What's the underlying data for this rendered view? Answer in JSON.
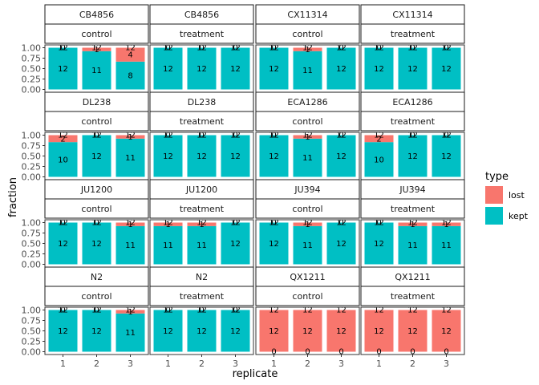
{
  "colors": {
    "lost": "#F8766D",
    "kept": "#00BFC4"
  },
  "chart_data": {
    "type": "bar",
    "stacked": true,
    "facet_rows": 4,
    "facet_cols": 4,
    "xlabel": "replicate",
    "ylabel": "fraction",
    "ylim": [
      0,
      1
    ],
    "y_ticks": [
      "0.00",
      "0.25",
      "0.50",
      "0.75",
      "1.00"
    ],
    "categories": [
      "1",
      "2",
      "3"
    ],
    "legend": {
      "title": "type",
      "position": "right",
      "entries": [
        {
          "name": "lost",
          "color_key": "lost"
        },
        {
          "name": "kept",
          "color_key": "kept"
        }
      ]
    },
    "panels": [
      {
        "strain": "CB4856",
        "condition": "control",
        "lost": [
          0,
          1,
          4
        ],
        "kept": [
          12,
          11,
          8
        ],
        "top": [
          "12",
          "12",
          "12"
        ]
      },
      {
        "strain": "CB4856",
        "condition": "treatment",
        "lost": [
          0,
          0,
          0
        ],
        "kept": [
          12,
          12,
          12
        ],
        "top": [
          "12",
          "12",
          "12"
        ]
      },
      {
        "strain": "CX11314",
        "condition": "control",
        "lost": [
          0,
          1,
          0
        ],
        "kept": [
          12,
          11,
          12
        ],
        "top": [
          "12",
          "12",
          "12"
        ]
      },
      {
        "strain": "CX11314",
        "condition": "treatment",
        "lost": [
          0,
          0,
          0
        ],
        "kept": [
          12,
          12,
          12
        ],
        "top": [
          "12",
          "12",
          "12"
        ]
      },
      {
        "strain": "DL238",
        "condition": "control",
        "lost": [
          2,
          0,
          1
        ],
        "kept": [
          10,
          12,
          11
        ],
        "top": [
          "12",
          "12",
          "12"
        ]
      },
      {
        "strain": "DL238",
        "condition": "treatment",
        "lost": [
          0,
          0,
          0
        ],
        "kept": [
          12,
          12,
          12
        ],
        "top": [
          "12",
          "12",
          "12"
        ]
      },
      {
        "strain": "ECA1286",
        "condition": "control",
        "lost": [
          0,
          1,
          0
        ],
        "kept": [
          12,
          11,
          12
        ],
        "top": [
          "12",
          "12",
          "12"
        ]
      },
      {
        "strain": "ECA1286",
        "condition": "treatment",
        "lost": [
          2,
          0,
          0
        ],
        "kept": [
          10,
          12,
          12
        ],
        "top": [
          "12",
          "12",
          "12"
        ]
      },
      {
        "strain": "JU1200",
        "condition": "control",
        "lost": [
          0,
          0,
          1
        ],
        "kept": [
          12,
          12,
          11
        ],
        "top": [
          "12",
          "12",
          "12"
        ]
      },
      {
        "strain": "JU1200",
        "condition": "treatment",
        "lost": [
          1,
          1,
          0
        ],
        "kept": [
          11,
          11,
          12
        ],
        "top": [
          "12",
          "12",
          "12"
        ]
      },
      {
        "strain": "JU394",
        "condition": "control",
        "lost": [
          0,
          1,
          0
        ],
        "kept": [
          12,
          11,
          12
        ],
        "top": [
          "12",
          "12",
          "12"
        ]
      },
      {
        "strain": "JU394",
        "condition": "treatment",
        "lost": [
          0,
          1,
          1
        ],
        "kept": [
          12,
          11,
          11
        ],
        "top": [
          "12",
          "12",
          "12"
        ]
      },
      {
        "strain": "N2",
        "condition": "control",
        "lost": [
          0,
          0,
          1
        ],
        "kept": [
          12,
          12,
          11
        ],
        "top": [
          "12",
          "12",
          "12"
        ]
      },
      {
        "strain": "N2",
        "condition": "treatment",
        "lost": [
          0,
          0,
          0
        ],
        "kept": [
          12,
          12,
          12
        ],
        "top": [
          "12",
          "12",
          "12"
        ]
      },
      {
        "strain": "QX1211",
        "condition": "control",
        "lost": [
          12,
          12,
          12
        ],
        "kept": [
          0,
          0,
          0
        ],
        "top": [
          "12",
          "12",
          "12"
        ]
      },
      {
        "strain": "QX1211",
        "condition": "treatment",
        "lost": [
          12,
          12,
          12
        ],
        "kept": [
          0,
          0,
          0
        ],
        "top": [
          "12",
          "12",
          "12"
        ]
      }
    ]
  }
}
